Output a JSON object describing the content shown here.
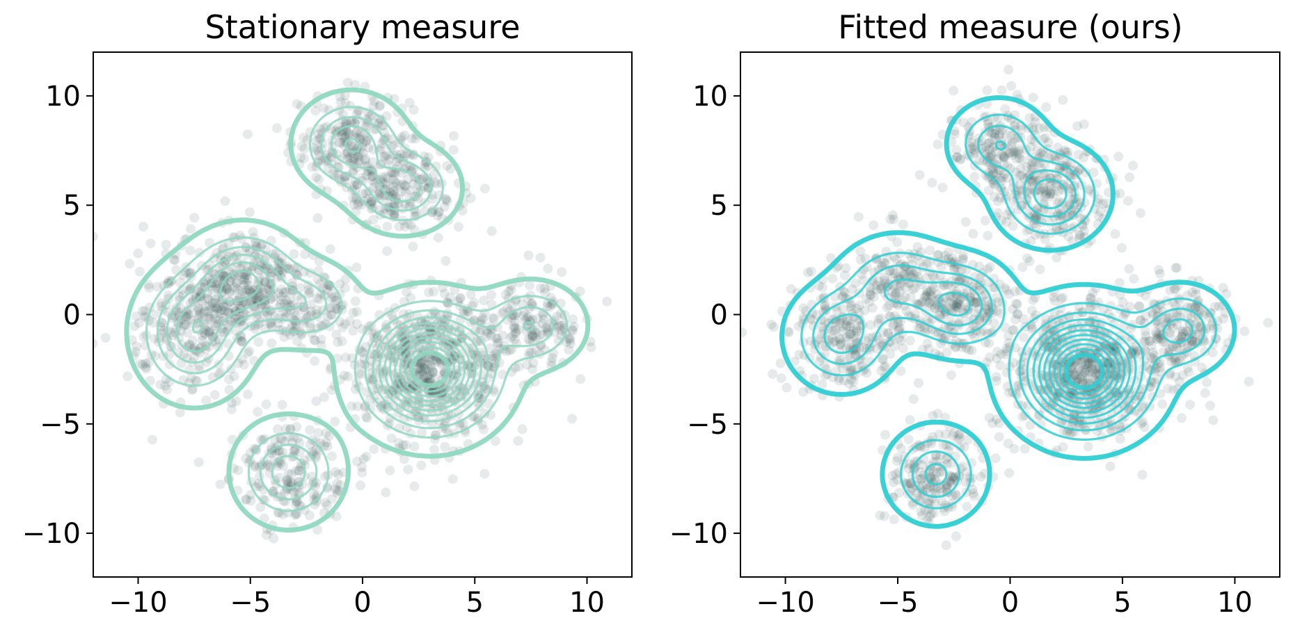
{
  "chart_data": [
    {
      "type": "scatter",
      "title": "Stationary measure",
      "xlabel": "",
      "ylabel": "",
      "xlim": [
        -12,
        12
      ],
      "ylim": [
        -12,
        12
      ],
      "xticks": [
        -10,
        -5,
        0,
        5,
        10
      ],
      "yticks": [
        -10,
        -5,
        0,
        5,
        10
      ],
      "xtick_labels": [
        "−10",
        "−5",
        "0",
        "5",
        "10"
      ],
      "ytick_labels": [
        "−10",
        "−5",
        "0",
        "5",
        "10"
      ],
      "grid": false,
      "legend": "none",
      "contour_color": "#8fd8bf",
      "point_color": "#2f4f4f",
      "density_components": [
        {
          "center": [
            -0.5,
            7.8
          ],
          "sd": [
            1.2,
            1.1
          ],
          "weight": 0.6
        },
        {
          "center": [
            1.8,
            5.8
          ],
          "sd": [
            1.2,
            1.0
          ],
          "weight": 0.55
        },
        {
          "center": [
            -5.3,
            1.5
          ],
          "sd": [
            1.3,
            1.2
          ],
          "weight": 0.75
        },
        {
          "center": [
            -7.5,
            -0.8
          ],
          "sd": [
            1.3,
            1.5
          ],
          "weight": 0.7
        },
        {
          "center": [
            -2.5,
            0.5
          ],
          "sd": [
            1.2,
            1.0
          ],
          "weight": 0.4
        },
        {
          "center": [
            3.0,
            -2.5
          ],
          "sd": [
            1.6,
            1.5
          ],
          "weight": 1.6
        },
        {
          "center": [
            7.5,
            -0.5
          ],
          "sd": [
            1.2,
            1.0
          ],
          "weight": 0.45
        },
        {
          "center": [
            -3.3,
            -7.2
          ],
          "sd": [
            1.2,
            1.2
          ],
          "weight": 0.55
        }
      ]
    },
    {
      "type": "scatter",
      "title": "Fitted measure (ours)",
      "xlabel": "",
      "ylabel": "",
      "xlim": [
        -12,
        12
      ],
      "ylim": [
        -12,
        12
      ],
      "xticks": [
        -10,
        -5,
        0,
        5,
        10
      ],
      "yticks": [
        -10,
        -5,
        0,
        5,
        10
      ],
      "xtick_labels": [
        "−10",
        "−5",
        "0",
        "5",
        "10"
      ],
      "ytick_labels": [
        "−10",
        "−5",
        "0",
        "5",
        "10"
      ],
      "grid": false,
      "legend": "none",
      "contour_color": "#2ecfd4",
      "point_color": "#2f4f4f",
      "density_components": [
        {
          "center": [
            -0.5,
            7.8
          ],
          "sd": [
            1.1,
            1.0
          ],
          "weight": 0.45
        },
        {
          "center": [
            1.8,
            5.5
          ],
          "sd": [
            1.2,
            1.1
          ],
          "weight": 0.7
        },
        {
          "center": [
            -5.0,
            1.2
          ],
          "sd": [
            1.4,
            1.2
          ],
          "weight": 0.45
        },
        {
          "center": [
            -7.5,
            -1.0
          ],
          "sd": [
            1.2,
            1.2
          ],
          "weight": 0.55
        },
        {
          "center": [
            -2.2,
            0.4
          ],
          "sd": [
            1.2,
            1.1
          ],
          "weight": 0.6
        },
        {
          "center": [
            3.3,
            -2.6
          ],
          "sd": [
            1.6,
            1.5
          ],
          "weight": 1.6
        },
        {
          "center": [
            7.6,
            -0.7
          ],
          "sd": [
            1.1,
            1.0
          ],
          "weight": 0.5
        },
        {
          "center": [
            -3.3,
            -7.3
          ],
          "sd": [
            1.1,
            1.1
          ],
          "weight": 0.5
        }
      ]
    }
  ]
}
